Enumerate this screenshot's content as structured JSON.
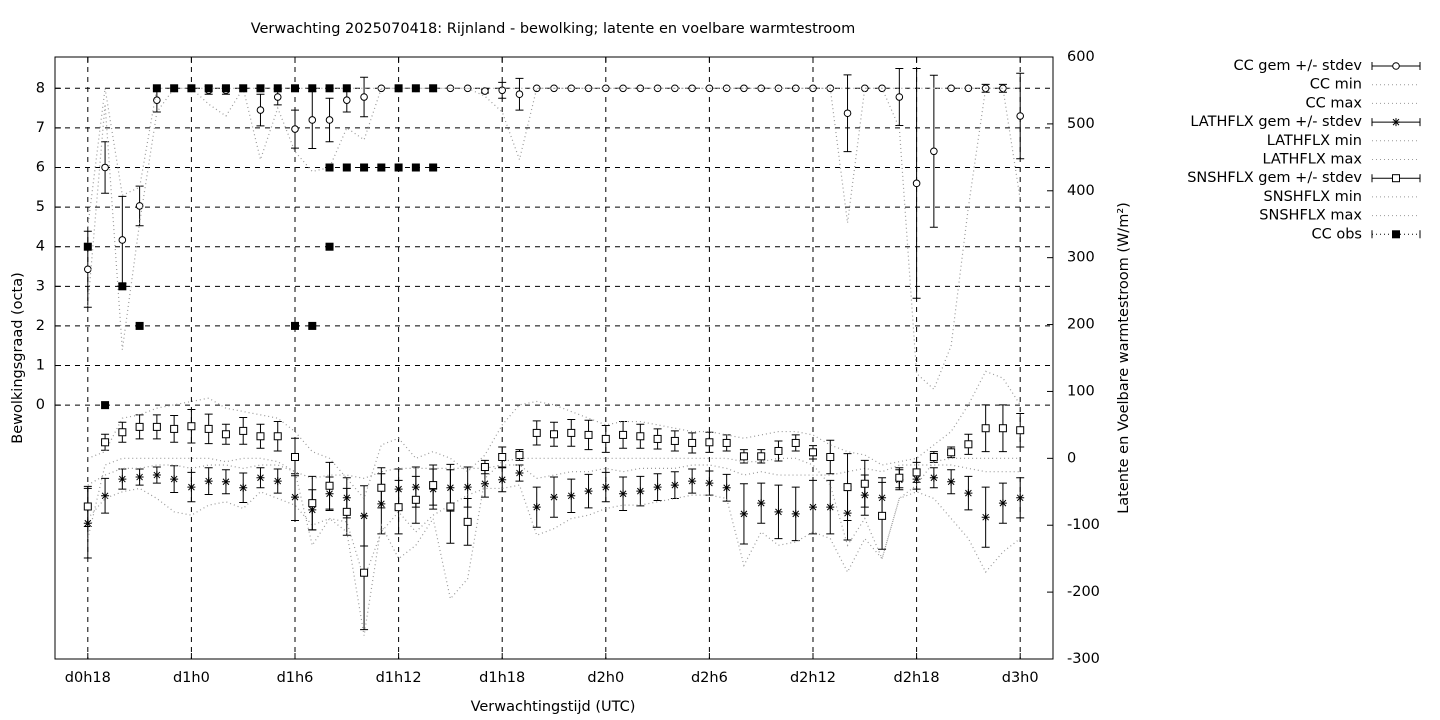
{
  "chart_data": {
    "type": "errorbar",
    "title": "Verwachting 2025070418: Rijnland - bewolking; latente en voelbare warmtestroom",
    "xlabel": "Verwachtingstijd (UTC)",
    "ylabel": "Bewolkingsgraad (octa)",
    "y2label": "Latente en Voelbare warmtestroom (W/m²)",
    "grid": true,
    "legend": "outside-right",
    "x": [
      0,
      1,
      2,
      3,
      4,
      5,
      6,
      7,
      8,
      9,
      10,
      11,
      12,
      13,
      14,
      15,
      16,
      17,
      18,
      19,
      20,
      21,
      22,
      23,
      24,
      25,
      26,
      27,
      28,
      29,
      30,
      31,
      32,
      33,
      34,
      35,
      36,
      37,
      38,
      39,
      40,
      41,
      42,
      43,
      44,
      45,
      46,
      47,
      48,
      49,
      50,
      51,
      52,
      53,
      54
    ],
    "xlim": [
      -1.9,
      55.9
    ],
    "xticks": [
      {
        "value": 0,
        "label": "d0h18"
      },
      {
        "value": 6,
        "label": "d1h0"
      },
      {
        "value": 12,
        "label": "d1h6"
      },
      {
        "value": 18,
        "label": "d1h12"
      },
      {
        "value": 24,
        "label": "d1h18"
      },
      {
        "value": 30,
        "label": "d2h0"
      },
      {
        "value": 36,
        "label": "d2h6"
      },
      {
        "value": 42,
        "label": "d2h12"
      },
      {
        "value": 48,
        "label": "d2h18"
      },
      {
        "value": 54,
        "label": "d3h0"
      }
    ],
    "ylim": [
      -6.41,
      8.79
    ],
    "yticks": [
      0,
      1,
      2,
      3,
      4,
      5,
      6,
      7,
      8
    ],
    "y2lim": [
      -300,
      600
    ],
    "y2ticks": [
      -300,
      -200,
      -100,
      0,
      100,
      200,
      300,
      400,
      500,
      600
    ],
    "series": [
      {
        "name": "CC gem +/- stdev",
        "axis": "y",
        "marker": "circle",
        "color": "#000000",
        "values": [
          3.43,
          6.0,
          4.17,
          5.03,
          7.7,
          8,
          8,
          7.95,
          7.95,
          8,
          7.45,
          7.78,
          6.97,
          7.2,
          7.2,
          7.7,
          7.78,
          8,
          8,
          8,
          8,
          8,
          8,
          7.93,
          7.95,
          7.85,
          8,
          8,
          8,
          8,
          8,
          8,
          8,
          8,
          8,
          8,
          8,
          8,
          8,
          8,
          8,
          8,
          8,
          8,
          7.37,
          8,
          8,
          7.78,
          5.6,
          6.41,
          8,
          8,
          8,
          8,
          7.3
        ],
        "errors": [
          0.96,
          0.65,
          1.1,
          0.5,
          0.3,
          0,
          0,
          0.1,
          0.1,
          0,
          0.4,
          0.2,
          0.48,
          0.72,
          0.55,
          0.3,
          0.5,
          0,
          0,
          0,
          0,
          0,
          0,
          0.05,
          0.2,
          0.4,
          0,
          0,
          0,
          0,
          0,
          0,
          0,
          0,
          0,
          0,
          0,
          0,
          0,
          0,
          0,
          0,
          0,
          0,
          0.97,
          0,
          0,
          0.72,
          2.9,
          1.92,
          0,
          0,
          0.1,
          0.1,
          1.08
        ]
      },
      {
        "name": "CC min",
        "axis": "y",
        "line": "dotted",
        "color": "#999999",
        "values": [
          2.5,
          7.6,
          1.4,
          4.6,
          7.4,
          8,
          8,
          7.6,
          7.3,
          8,
          6.2,
          7.5,
          6.4,
          5.9,
          6.0,
          7.0,
          6.7,
          8,
          8,
          8,
          8,
          8,
          8,
          7.8,
          7.4,
          6.2,
          8,
          8,
          8,
          8,
          8,
          8,
          8,
          8,
          8,
          8,
          8,
          8,
          8,
          8,
          8,
          8,
          8,
          8,
          4.6,
          8,
          8,
          7.0,
          0.8,
          0.4,
          1.5,
          5,
          8,
          8,
          5.2
        ]
      },
      {
        "name": "CC max",
        "axis": "y",
        "line": "dotted",
        "color": "#999999",
        "values": [
          4.5,
          8,
          5.3,
          5.5,
          8,
          8,
          8,
          8,
          8,
          8,
          8,
          8,
          8,
          8,
          8,
          8,
          8,
          8,
          8,
          8,
          8,
          8,
          8,
          8,
          8,
          8,
          8,
          8,
          8,
          8,
          8,
          8,
          8,
          8,
          8,
          8,
          8,
          8,
          8,
          8,
          8,
          8,
          8,
          8,
          8,
          8,
          8,
          8,
          8,
          8,
          8,
          8,
          8,
          8,
          8
        ]
      },
      {
        "name": "LATHFLX gem +/- stdev",
        "axis": "y2",
        "marker": "star",
        "color": "#000000",
        "values": [
          -97,
          -56,
          -31,
          -28,
          -25,
          -31,
          -43,
          -34,
          -35,
          -44,
          -29,
          -34,
          -58,
          -77,
          -53,
          -59,
          -86,
          -68,
          -46,
          -43,
          -46,
          -44,
          -43,
          -38,
          -32,
          -22,
          -73,
          -58,
          -56,
          -49,
          -43,
          -53,
          -49,
          -43,
          -40,
          -34,
          -37,
          -44,
          -83,
          -67,
          -80,
          -83,
          -73,
          -73,
          -82,
          -55,
          -59,
          -32,
          -31,
          -29,
          -35,
          -52,
          -88,
          -67,
          -59
        ],
        "errors": [
          52,
          26,
          15,
          12,
          12,
          20,
          22,
          20,
          18,
          22,
          15,
          18,
          35,
          30,
          25,
          30,
          45,
          45,
          30,
          30,
          30,
          35,
          30,
          20,
          18,
          12,
          30,
          30,
          25,
          25,
          22,
          25,
          22,
          20,
          20,
          18,
          18,
          20,
          45,
          30,
          40,
          40,
          40,
          40,
          40,
          30,
          30,
          15,
          15,
          15,
          18,
          25,
          45,
          30,
          30
        ]
      },
      {
        "name": "LATHFLX min",
        "axis": "y2",
        "line": "dotted",
        "color": "#999999",
        "values": [
          -90,
          -60,
          -50,
          -45,
          -60,
          -80,
          -85,
          -70,
          -65,
          -75,
          -50,
          -60,
          -70,
          -100,
          -90,
          -95,
          -180,
          -110,
          -80,
          -110,
          -85,
          -70,
          -55,
          -45,
          -45,
          -40,
          -115,
          -105,
          -90,
          -85,
          -75,
          -70,
          -70,
          -65,
          -60,
          -55,
          -55,
          -60,
          -160,
          -110,
          -130,
          -125,
          -110,
          -120,
          -170,
          -120,
          -150,
          -60,
          -50,
          -60,
          -90,
          -120,
          -170,
          -140,
          -120
        ]
      },
      {
        "name": "LATHFLX max",
        "axis": "y2",
        "line": "dotted",
        "color": "#999999",
        "values": [
          -40,
          -25,
          -15,
          -15,
          -10,
          -10,
          -15,
          -10,
          -10,
          -15,
          -10,
          -10,
          -20,
          -30,
          -25,
          -25,
          -30,
          -20,
          -15,
          -15,
          -15,
          -15,
          -15,
          -15,
          -10,
          -10,
          -30,
          -25,
          -20,
          -20,
          -15,
          -20,
          -15,
          -15,
          -15,
          -10,
          -10,
          -15,
          -25,
          -20,
          -25,
          -25,
          -25,
          -25,
          -20,
          -15,
          -20,
          -10,
          -10,
          -10,
          -10,
          -15,
          -20,
          -20,
          -20
        ]
      },
      {
        "name": "SNSHFLX gem +/- stdev",
        "axis": "y2",
        "marker": "square",
        "color": "#000000",
        "values": [
          -72,
          24,
          39,
          47,
          47,
          44,
          48,
          44,
          36,
          41,
          33,
          33,
          2,
          -67,
          -41,
          -80,
          -171,
          -44,
          -73,
          -62,
          -40,
          -72,
          -95,
          -13,
          2,
          5,
          38,
          36,
          38,
          35,
          29,
          35,
          33,
          29,
          26,
          23,
          24,
          23,
          3,
          3,
          11,
          23,
          9,
          2,
          -43,
          -38,
          -86,
          -29,
          -21,
          2,
          9,
          21,
          45,
          45,
          42
        ],
        "errors": [
          30,
          12,
          15,
          18,
          18,
          20,
          25,
          22,
          15,
          20,
          18,
          22,
          28,
          40,
          35,
          35,
          85,
          30,
          40,
          35,
          30,
          55,
          35,
          10,
          15,
          8,
          18,
          18,
          20,
          22,
          20,
          20,
          18,
          15,
          15,
          15,
          15,
          12,
          10,
          10,
          15,
          12,
          10,
          25,
          50,
          35,
          50,
          15,
          15,
          8,
          8,
          15,
          35,
          35,
          25
        ]
      },
      {
        "name": "SNSHFLX min",
        "axis": "y2",
        "line": "dotted",
        "color": "#999999",
        "values": [
          -120,
          -10,
          0,
          0,
          0,
          0,
          0,
          0,
          -5,
          0,
          0,
          -5,
          -20,
          -130,
          -90,
          -110,
          -265,
          -100,
          -150,
          -130,
          -90,
          -210,
          -180,
          -30,
          -5,
          0,
          0,
          0,
          0,
          0,
          0,
          0,
          0,
          0,
          0,
          0,
          0,
          0,
          -5,
          -5,
          0,
          0,
          -10,
          -40,
          -130,
          -90,
          -150,
          -60,
          -40,
          -5,
          0,
          0,
          0,
          0,
          0
        ]
      },
      {
        "name": "SNSHFLX max",
        "axis": "y2",
        "line": "dotted",
        "color": "#999999",
        "values": [
          0,
          10,
          60,
          65,
          75,
          80,
          85,
          90,
          75,
          70,
          65,
          60,
          40,
          10,
          0,
          -30,
          -60,
          20,
          30,
          0,
          10,
          0,
          -20,
          5,
          50,
          80,
          85,
          80,
          70,
          60,
          50,
          55,
          55,
          50,
          45,
          40,
          40,
          35,
          30,
          35,
          40,
          40,
          35,
          20,
          10,
          5,
          -10,
          -5,
          0,
          20,
          40,
          80,
          130,
          120,
          80
        ]
      },
      {
        "name": "CC obs",
        "axis": "y",
        "marker": "filled-square",
        "color": "#000000",
        "x": [
          0,
          1,
          2,
          3,
          4,
          5,
          6,
          7,
          8,
          9,
          10,
          11,
          12,
          12,
          13,
          13,
          14,
          14,
          14,
          15,
          15,
          16,
          17,
          18,
          18,
          19,
          19,
          20,
          20
        ],
        "values": [
          4,
          0,
          3,
          2,
          8,
          8,
          8,
          8,
          8,
          8,
          8,
          8,
          8,
          2,
          8,
          2,
          8,
          6,
          4,
          8,
          6,
          6,
          6,
          8,
          6,
          8,
          6,
          8,
          6
        ]
      }
    ]
  }
}
